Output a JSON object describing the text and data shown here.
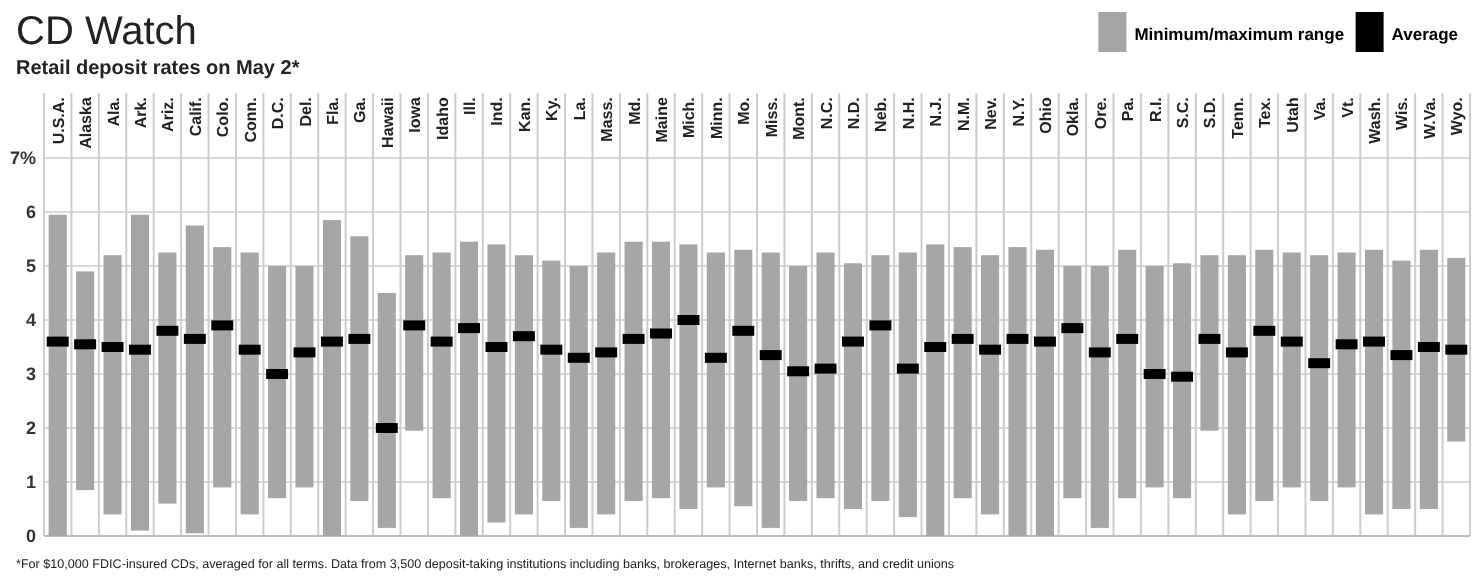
{
  "chart_data": {
    "type": "bar",
    "title": "CD Watch",
    "subtitle": "Retail deposit rates on May 2*",
    "categories": [
      "U.S.A.",
      "Alaska",
      "Ala.",
      "Ark.",
      "Ariz.",
      "Calif.",
      "Colo.",
      "Conn.",
      "D.C.",
      "Del.",
      "Fla.",
      "Ga.",
      "Hawaii",
      "Iowa",
      "Idaho",
      "Ill.",
      "Ind.",
      "Kan.",
      "Ky.",
      "La.",
      "Mass.",
      "Md.",
      "Maine",
      "Mich.",
      "Minn.",
      "Mo.",
      "Miss.",
      "Mont.",
      "N.C.",
      "N.D.",
      "Neb.",
      "N.H.",
      "N.J.",
      "N.M.",
      "Nev.",
      "N.Y.",
      "Ohio",
      "Okla.",
      "Ore.",
      "Pa.",
      "R.I.",
      "S.C.",
      "S.D.",
      "Tenn.",
      "Tex.",
      "Utah",
      "Va.",
      "Vt.",
      "Wash.",
      "Wis.",
      "W.Va.",
      "Wyo."
    ],
    "series": [
      {
        "name": "Minimum/maximum range",
        "color": "#a6a6a6",
        "base": [
          0,
          0.85,
          0.4,
          0.1,
          0.6,
          0.05,
          0.9,
          0.4,
          0.7,
          0.9,
          0,
          0.65,
          0.15,
          1.95,
          0.7,
          0,
          0.25,
          0.4,
          0.65,
          0.15,
          0.4,
          0.65,
          0.7,
          0.5,
          0.9,
          0.55,
          0.15,
          0.65,
          0.7,
          0.5,
          0.65,
          0.35,
          0,
          0.7,
          0.4,
          0,
          0,
          0.7,
          0.15,
          0.7,
          0.9,
          0.7,
          1.95,
          0.4,
          0.65,
          0.9,
          0.65,
          0.9,
          0.4,
          0.5,
          0.5,
          1.75
        ],
        "values": [
          5.95,
          4.05,
          4.8,
          5.85,
          4.65,
          5.7,
          4.45,
          4.85,
          4.3,
          4.1,
          5.85,
          4.9,
          4.35,
          3.25,
          4.55,
          5.45,
          5.15,
          4.8,
          4.45,
          4.85,
          4.85,
          4.8,
          4.75,
          4.9,
          4.35,
          4.75,
          5.1,
          4.35,
          4.55,
          4.55,
          4.55,
          4.9,
          5.4,
          4.65,
          4.8,
          5.35,
          5.3,
          4.3,
          4.85,
          4.6,
          4.1,
          4.35,
          3.25,
          4.8,
          4.65,
          4.35,
          4.55,
          4.35,
          4.9,
          4.6,
          4.8,
          3.4
        ]
      },
      {
        "name": "Average",
        "type": "scatter",
        "marker": "square",
        "color": "#000000",
        "values": [
          3.6,
          3.55,
          3.5,
          3.45,
          3.8,
          3.65,
          3.9,
          3.45,
          3.0,
          3.4,
          3.6,
          3.65,
          2.0,
          3.9,
          3.6,
          3.85,
          3.5,
          3.7,
          3.45,
          3.3,
          3.4,
          3.65,
          3.75,
          4.0,
          3.3,
          3.8,
          3.35,
          3.05,
          3.1,
          3.6,
          3.9,
          3.1,
          3.5,
          3.65,
          3.45,
          3.65,
          3.6,
          3.85,
          3.4,
          3.65,
          3.0,
          2.95,
          3.65,
          3.4,
          3.8,
          3.6,
          3.2,
          3.55,
          3.6,
          3.35,
          3.5,
          3.45
        ]
      }
    ],
    "ylim": [
      0,
      8.2
    ],
    "yticks": [
      0,
      1,
      2,
      3,
      4,
      5,
      6,
      {
        "value": 7,
        "label": "7%"
      }
    ],
    "grid": true,
    "legend": "top right",
    "annotations": [
      "*For $10,000 FDIC-insured CDs, averaged for all terms. Data from 3,500 deposit-taking institutions including banks, brokerages, Internet banks, thrifts, and credit unions"
    ]
  }
}
